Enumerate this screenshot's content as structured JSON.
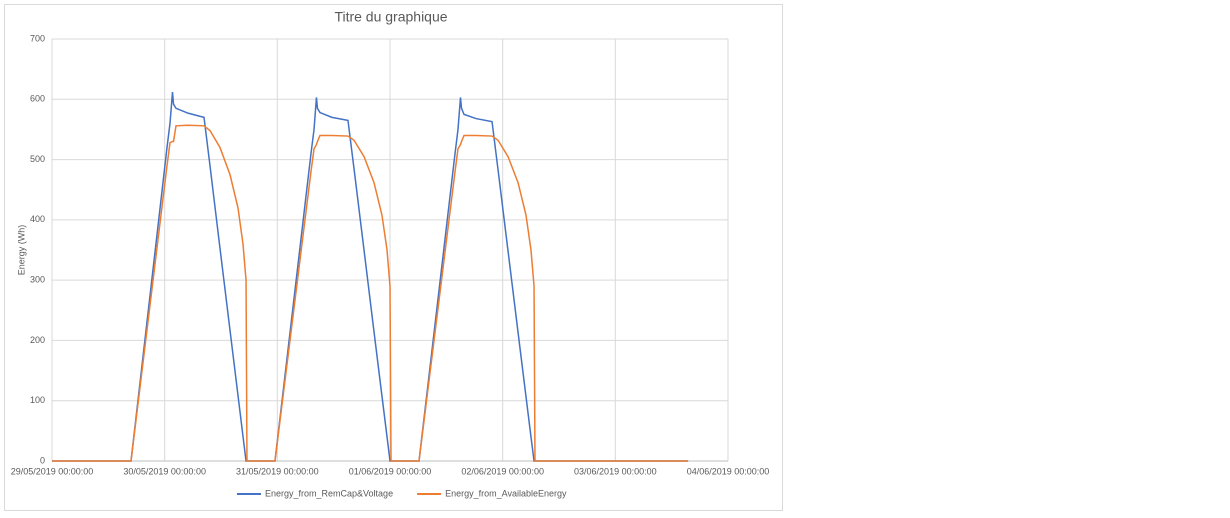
{
  "chart_data": {
    "type": "line",
    "title": "Titre du graphique",
    "y_label": "Energy (Wh)",
    "x": [
      "29/05/2019 00:00:00",
      "29/05/2019 16:50:00",
      "30/05/2019 00:30:00",
      "30/05/2019 01:08:00",
      "30/05/2019 01:40:00",
      "30/05/2019 01:53:00",
      "30/05/2019 02:25:00",
      "30/05/2019 04:58:00",
      "30/05/2019 08:23:00",
      "30/05/2019 09:40:00",
      "30/05/2019 11:47:00",
      "30/05/2019 13:55:00",
      "30/05/2019 15:37:00",
      "30/05/2019 16:41:00",
      "30/05/2019 17:20:00",
      "30/05/2019 17:32:00",
      "30/05/2019 23:30:00",
      "31/05/2019 07:10:00",
      "31/05/2019 07:49:00",
      "31/05/2019 08:20:00",
      "31/05/2019 08:33:00",
      "31/05/2019 09:05:00",
      "31/05/2019 11:38:00",
      "31/05/2019 15:03:00",
      "31/05/2019 16:20:00",
      "31/05/2019 18:28:00",
      "31/05/2019 20:35:00",
      "31/05/2019 22:17:00",
      "31/05/2019 23:22:00",
      "01/06/2019 00:00:00",
      "01/06/2019 00:13:00",
      "01/06/2019 06:11:00",
      "01/06/2019 13:51:00",
      "01/06/2019 14:29:00",
      "01/06/2019 15:01:00",
      "01/06/2019 15:14:00",
      "01/06/2019 15:46:00",
      "01/06/2019 18:19:00",
      "01/06/2019 21:44:00",
      "01/06/2019 23:01:00",
      "02/06/2019 01:08:00",
      "02/06/2019 03:16:00",
      "02/06/2019 04:58:00",
      "02/06/2019 06:02:00",
      "02/06/2019 06:41:00",
      "02/06/2019 06:53:00",
      "03/06/2019 15:30:00"
    ],
    "series": [
      {
        "name": "Energy_from_RemCap&Voltage",
        "color": "#4472c4",
        "values": [
          0,
          0,
          520,
          560,
          612,
          592,
          585,
          577,
          570,
          489,
          353,
          217,
          109,
          41,
          0,
          0,
          0,
          510,
          550,
          603,
          585,
          578,
          570,
          565,
          485,
          350,
          215,
          108,
          40,
          0,
          0,
          0,
          510,
          550,
          603,
          585,
          575,
          568,
          563,
          483,
          349,
          214,
          107,
          40,
          0,
          0,
          0
        ]
      },
      {
        "name": "Energy_from_AvailableEnergy",
        "color": "#ed7d31",
        "values": [
          0,
          0,
          490,
          528,
          530,
          530,
          556,
          557,
          556,
          548,
          520,
          475,
          420,
          360,
          300,
          0,
          0,
          480,
          518,
          525,
          530,
          540,
          540,
          539,
          532,
          505,
          462,
          408,
          350,
          290,
          0,
          0,
          480,
          518,
          525,
          530,
          540,
          540,
          539,
          532,
          505,
          462,
          408,
          350,
          290,
          0,
          0
        ]
      }
    ],
    "xlim": [
      "29/05/2019 00:00:00",
      "04/06/2019 00:00:00"
    ],
    "xticks": [
      "29/05/2019 00:00:00",
      "30/05/2019 00:00:00",
      "31/05/2019 00:00:00",
      "01/06/2019 00:00:00",
      "02/06/2019 00:00:00",
      "03/06/2019 00:00:00",
      "04/06/2019 00:00:00"
    ],
    "ylim": [
      0,
      700
    ],
    "yticks": [
      0,
      100,
      200,
      300,
      400,
      500,
      600,
      700
    ],
    "grid": true,
    "legend": "bottom"
  }
}
